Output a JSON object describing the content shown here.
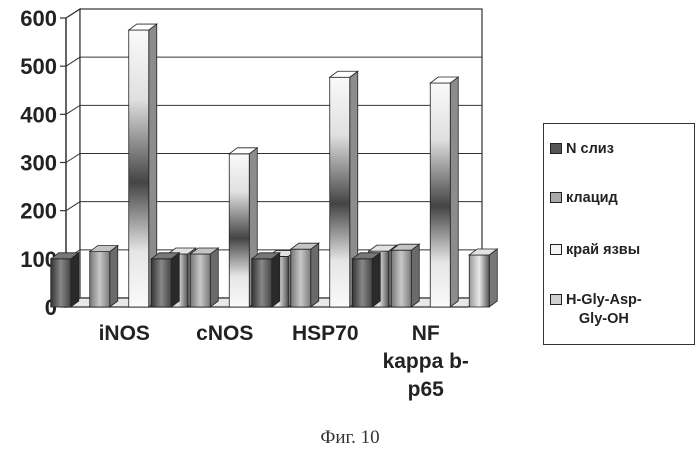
{
  "chart_data": {
    "type": "bar",
    "style": "3d-clustered-column",
    "categories": [
      "iNOS",
      "cNOS",
      "HSP70",
      "NF\nkappa b-\np65"
    ],
    "series": [
      {
        "name": "N слиз",
        "values": [
          100,
          100,
          100,
          100
        ]
      },
      {
        "name": "клацид",
        "values": [
          115,
          110,
          120,
          118
        ]
      },
      {
        "name": "край язвы",
        "values": [
          575,
          318,
          477,
          465
        ]
      },
      {
        "name": "H-Gly-Asp-\nGly-OH",
        "values": [
          110,
          105,
          116,
          108
        ]
      }
    ],
    "yticks": [
      "0",
      "100",
      "200",
      "300",
      "400",
      "500",
      "600"
    ],
    "ylim": [
      0,
      600
    ],
    "grid": true,
    "legend_position": "right",
    "colors": [
      "#555555",
      "#a9a9a9",
      "#f4f4f4",
      "#cfcfcf"
    ]
  },
  "caption": "Фиг. 10"
}
